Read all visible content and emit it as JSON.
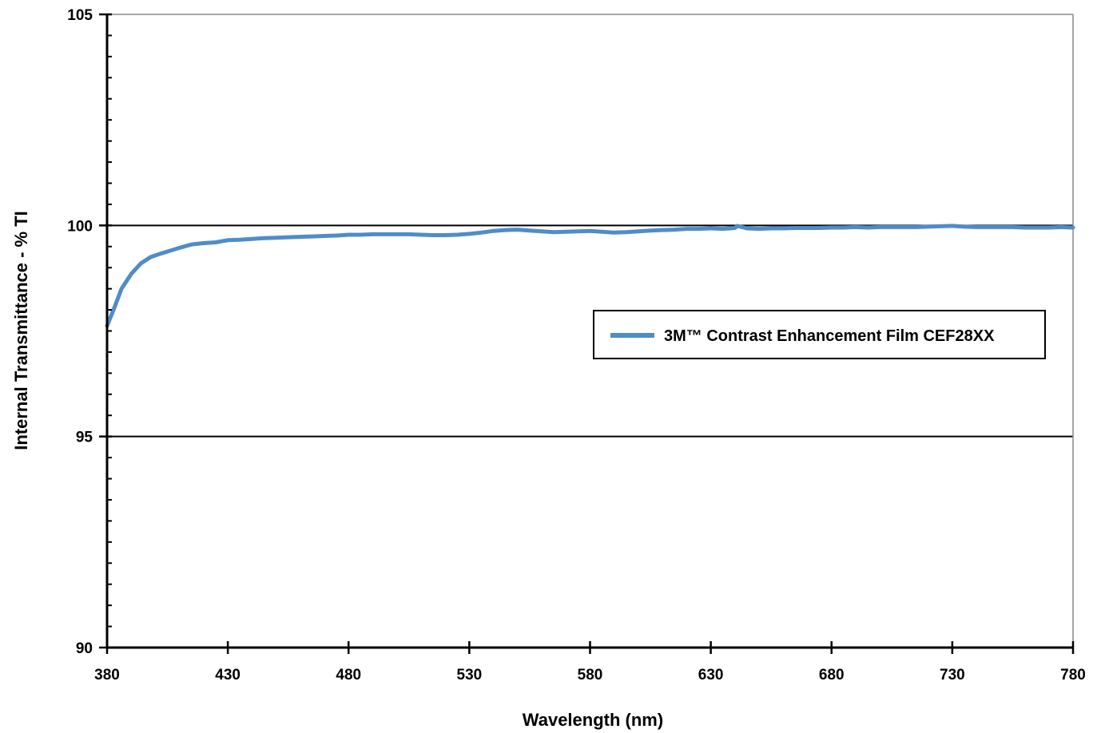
{
  "chart_data": {
    "type": "line",
    "title": "",
    "xlabel": "Wavelength (nm)",
    "ylabel": "Internal Transmittance - % TI",
    "xlim": [
      380,
      780
    ],
    "ylim": [
      90,
      105
    ],
    "x_ticks": [
      380,
      430,
      480,
      530,
      580,
      630,
      680,
      730,
      780
    ],
    "y_ticks": [
      90,
      95,
      100,
      105
    ],
    "y_minor_step": 0.5,
    "horizontal_gridlines": [
      95,
      100
    ],
    "legend_position": "right-middle",
    "series": [
      {
        "name": "3M™ Contrast Enhancement Film CEF28XX",
        "color": "#4f8cc9",
        "x": [
          380,
          383,
          386,
          390,
          394,
          398,
          402,
          406,
          410,
          415,
          420,
          425,
          430,
          435,
          440,
          445,
          450,
          455,
          460,
          465,
          470,
          475,
          480,
          485,
          490,
          495,
          500,
          505,
          510,
          515,
          520,
          525,
          530,
          535,
          540,
          545,
          550,
          555,
          560,
          565,
          570,
          575,
          580,
          585,
          590,
          595,
          600,
          605,
          610,
          615,
          620,
          625,
          630,
          635,
          640,
          641,
          645,
          650,
          655,
          660,
          665,
          670,
          675,
          680,
          685,
          690,
          695,
          700,
          705,
          710,
          715,
          720,
          725,
          730,
          735,
          740,
          745,
          750,
          755,
          760,
          765,
          770,
          775,
          780
        ],
        "y": [
          97.62,
          98.05,
          98.5,
          98.85,
          99.1,
          99.25,
          99.33,
          99.4,
          99.47,
          99.55,
          99.58,
          99.6,
          99.65,
          99.66,
          99.68,
          99.7,
          99.71,
          99.72,
          99.73,
          99.74,
          99.75,
          99.76,
          99.78,
          99.78,
          99.79,
          99.79,
          99.79,
          99.79,
          99.78,
          99.77,
          99.77,
          99.78,
          99.8,
          99.83,
          99.87,
          99.89,
          99.9,
          99.88,
          99.86,
          99.84,
          99.85,
          99.86,
          99.87,
          99.85,
          99.83,
          99.84,
          99.86,
          99.88,
          99.89,
          99.9,
          99.92,
          99.92,
          99.93,
          99.92,
          99.94,
          99.99,
          99.93,
          99.92,
          99.93,
          99.93,
          99.94,
          99.94,
          99.94,
          99.95,
          99.95,
          99.96,
          99.95,
          99.96,
          99.96,
          99.96,
          99.96,
          99.97,
          99.98,
          99.99,
          99.97,
          99.96,
          99.96,
          99.96,
          99.96,
          99.95,
          99.95,
          99.95,
          99.96,
          99.95
        ]
      }
    ]
  }
}
